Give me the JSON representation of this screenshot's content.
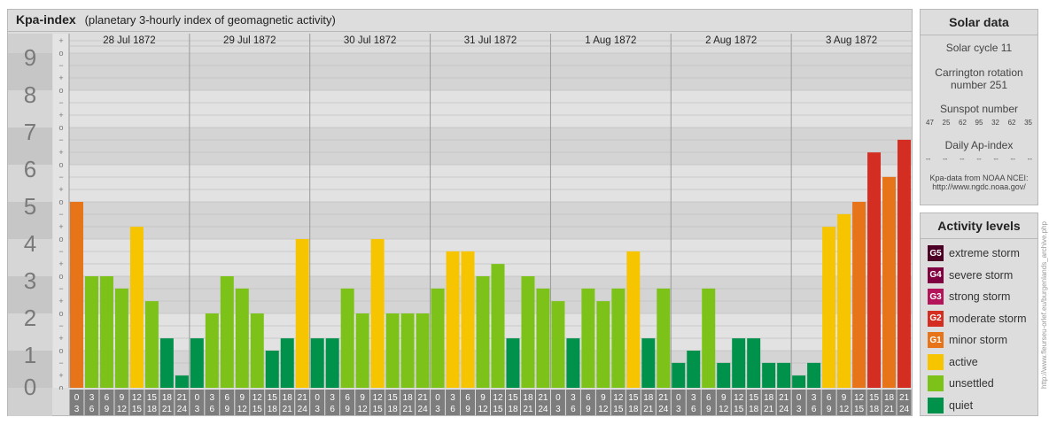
{
  "header": {
    "title": "Kpa-index",
    "subtitle": "(planetary 3-hourly index of geomagnetic activity)"
  },
  "chart_data": {
    "type": "bar",
    "ylim": [
      0,
      9
    ],
    "y_ticks": [
      "0",
      "1",
      "2",
      "3",
      "4",
      "5",
      "6",
      "7",
      "8",
      "9"
    ],
    "minor_tick_marks": [
      "o",
      "+",
      "−"
    ],
    "days": [
      "28 Jul 1872",
      "29 Jul 1872",
      "30 Jul 1872",
      "31 Jul 1872",
      "1 Aug 1872",
      "2 Aug 1872",
      "3 Aug 1872"
    ],
    "interval_labels": [
      [
        "0",
        "3"
      ],
      [
        "3",
        "6"
      ],
      [
        "6",
        "9"
      ],
      [
        "9",
        "12"
      ],
      [
        "12",
        "15"
      ],
      [
        "15",
        "18"
      ],
      [
        "18",
        "21"
      ],
      [
        "21",
        "24"
      ]
    ],
    "values": [
      5.0,
      3.0,
      3.0,
      2.67,
      4.33,
      2.33,
      1.33,
      0.33,
      1.33,
      2.0,
      3.0,
      2.67,
      2.0,
      1.0,
      1.33,
      4.0,
      1.33,
      1.33,
      2.67,
      2.0,
      4.0,
      2.0,
      2.0,
      2.0,
      2.67,
      3.67,
      3.67,
      3.0,
      3.33,
      1.33,
      3.0,
      2.67,
      2.33,
      1.33,
      2.67,
      2.33,
      2.67,
      3.67,
      1.33,
      2.67,
      0.67,
      1.0,
      2.67,
      0.67,
      1.33,
      1.33,
      0.67,
      0.67,
      0.33,
      0.67,
      4.33,
      4.67,
      5.0,
      6.33,
      5.67,
      6.67
    ]
  },
  "solar": {
    "title": "Solar data",
    "cycle": "Solar cycle 11",
    "carrington_1": "Carrington rotation",
    "carrington_2": "number 251",
    "sunspot_title": "Sunspot number",
    "sunspots": [
      "47",
      "25",
      "62",
      "95",
      "32",
      "62",
      "35"
    ],
    "ap_title": "Daily Ap-index",
    "ap_values": [
      "--",
      "--",
      "--",
      "--",
      "--",
      "--",
      "--"
    ],
    "source_1": "Kpa-data from NOAA NCEI:",
    "source_2": "http://www.ngdc.noaa.gov/"
  },
  "levels": {
    "title": "Activity levels",
    "items": [
      {
        "badge": "G5",
        "label": "extreme storm",
        "color": "#4d0026"
      },
      {
        "badge": "G4",
        "label": "severe storm",
        "color": "#80003f"
      },
      {
        "badge": "G3",
        "label": "strong storm",
        "color": "#b4145a"
      },
      {
        "badge": "G2",
        "label": "moderate storm",
        "color": "#d42e22"
      },
      {
        "badge": "G1",
        "label": "minor storm",
        "color": "#e8741a"
      },
      {
        "badge": "",
        "label": "active",
        "color": "#f7c500"
      },
      {
        "badge": "",
        "label": "unsettled",
        "color": "#7cc219"
      },
      {
        "badge": "",
        "label": "quiet",
        "color": "#00914a"
      }
    ]
  },
  "watermark": "http://www.fleurseu-orlef.eu/burgenlands_archive.php"
}
